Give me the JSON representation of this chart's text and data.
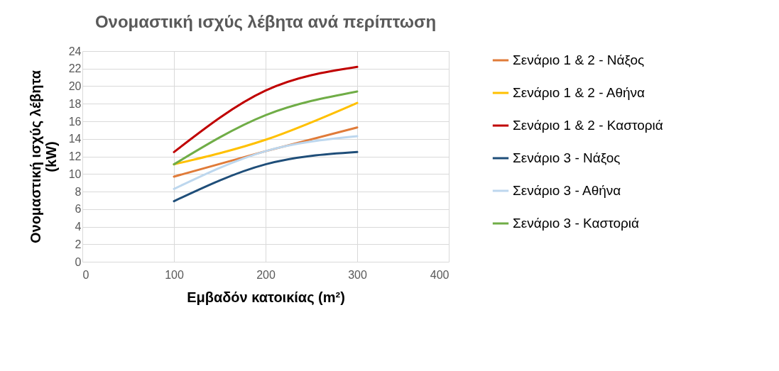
{
  "chart_data": {
    "type": "line",
    "title": "Ονομαστική ισχύς λέβητα ανά περίπτωση",
    "xlabel": "Εμβαδόν κατοικίας (m²)",
    "ylabel": "Ονομαστική ισχύς λέβητα (kW)",
    "x": [
      100,
      200,
      300
    ],
    "xlim": [
      0,
      400
    ],
    "xticks": [
      0,
      100,
      200,
      300,
      400
    ],
    "ylim": [
      0,
      24
    ],
    "yticks": [
      0,
      2,
      4,
      6,
      8,
      10,
      12,
      14,
      16,
      18,
      20,
      22,
      24
    ],
    "grid": true,
    "legend": "right",
    "marker": "none",
    "line_style": "solid",
    "series": [
      {
        "name": "Σενάριο 1 & 2 - Νάξος",
        "color": "#e07b39",
        "values": [
          9.7,
          12.6,
          15.3
        ]
      },
      {
        "name": "Σενάριο 1 & 2 - Αθήνα",
        "color": "#ffc000",
        "values": [
          11.1,
          13.9,
          18.1
        ]
      },
      {
        "name": "Σενάριο 1 & 2 - Καστοριά",
        "color": "#c00000",
        "values": [
          12.5,
          19.5,
          22.2
        ]
      },
      {
        "name": "Σενάριο 3 - Νάξος",
        "color": "#1f4e79",
        "values": [
          6.9,
          11.1,
          12.5
        ]
      },
      {
        "name": "Σενάριο 3 - Αθήνα",
        "color": "#bdd7ee",
        "values": [
          8.3,
          12.6,
          14.3
        ]
      },
      {
        "name": "Σενάριο 3 - Καστοριά",
        "color": "#70ad47",
        "values": [
          11.1,
          16.7,
          19.4
        ]
      }
    ]
  }
}
